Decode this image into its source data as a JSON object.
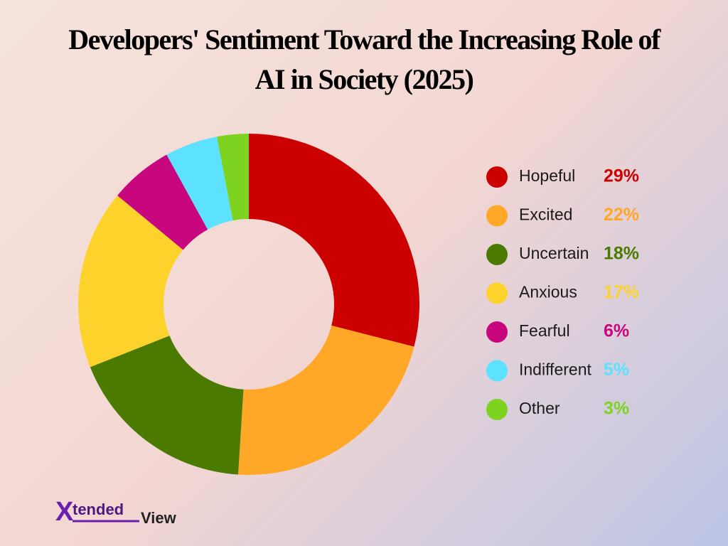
{
  "chart_data": {
    "type": "donut",
    "title": "Developers' Sentiment Toward the Increasing Role of AI in Society (2025)",
    "categories": [
      "Hopeful",
      "Excited",
      "Uncertain",
      "Anxious",
      "Fearful",
      "Indifferent",
      "Other"
    ],
    "values": [
      29,
      22,
      18,
      17,
      6,
      5,
      3
    ],
    "value_labels": [
      "29%",
      "22%",
      "18%",
      "17%",
      "6%",
      "5%",
      "3%"
    ],
    "colors": [
      "#cc0000",
      "#ffa726",
      "#4a7a00",
      "#fdd32b",
      "#c8077e",
      "#5ce1fe",
      "#7ed321"
    ],
    "legend": "right"
  },
  "logo": {
    "mark": "X",
    "text": "tended",
    "suffix": "View"
  }
}
